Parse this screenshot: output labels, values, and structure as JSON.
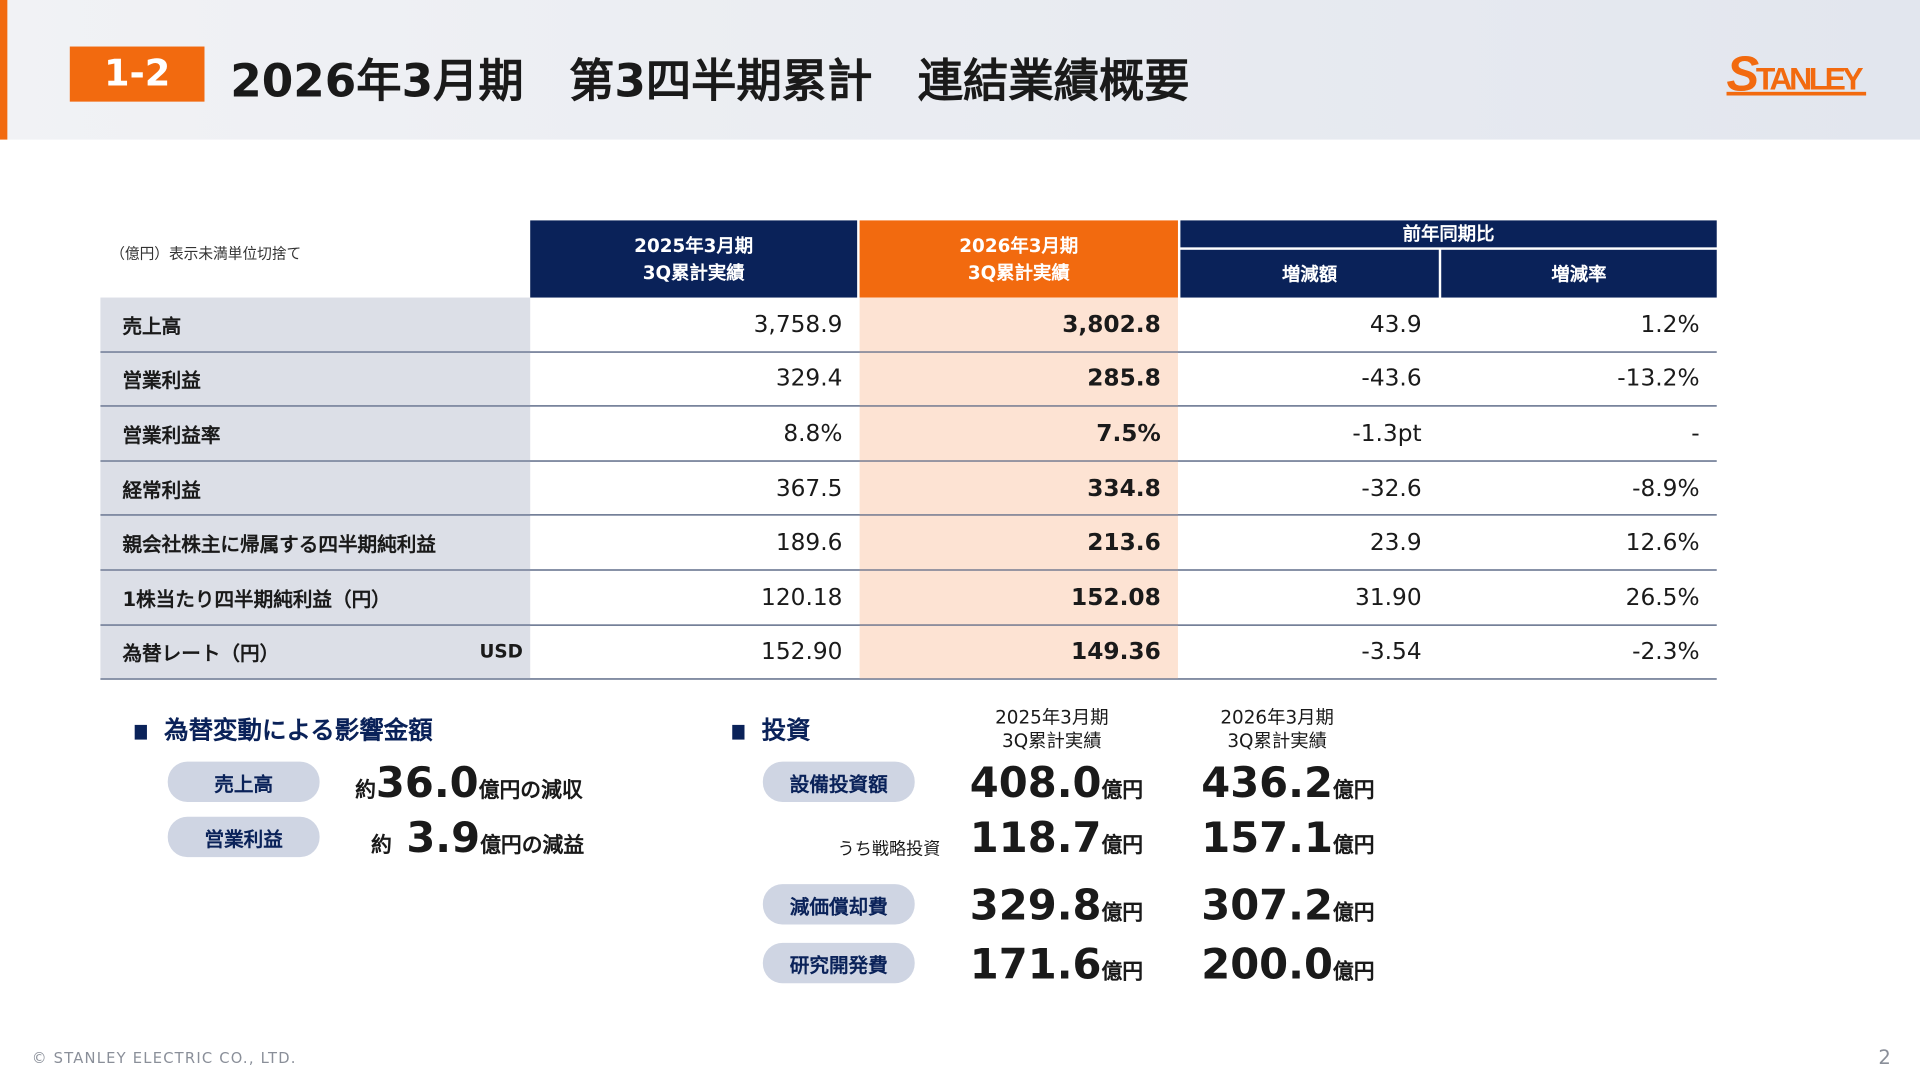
{
  "header": {
    "badge": "1-2",
    "title": "2026年3月期　第3四半期累計　連結業績概要",
    "logo_text": "STANLEY",
    "accent": "#f26a0f",
    "navy": "#0a2259"
  },
  "table": {
    "note": "（億円）表示未満単位切捨て",
    "col_prev": [
      "2025年3月期",
      "3Q累計実績"
    ],
    "col_curr": [
      "2026年3月期",
      "3Q累計実績"
    ],
    "col_yoy": "前年同期比",
    "col_diff": "増減額",
    "col_rate": "増減率",
    "rows": [
      {
        "label": "売上高",
        "prev": "3,758.9",
        "curr": "3,802.8",
        "diff": "43.9",
        "rate": "1.2%"
      },
      {
        "label": "営業利益",
        "prev": "329.4",
        "curr": "285.8",
        "diff": "-43.6",
        "rate": "-13.2%"
      },
      {
        "label": "営業利益率",
        "prev": "8.8%",
        "curr": "7.5%",
        "diff": "-1.3pt",
        "rate": "-"
      },
      {
        "label": "経常利益",
        "prev": "367.5",
        "curr": "334.8",
        "diff": "-32.6",
        "rate": "-8.9%"
      },
      {
        "label": "親会社株主に帰属する四半期純利益",
        "prev": "189.6",
        "curr": "213.6",
        "diff": "23.9",
        "rate": "12.6%"
      },
      {
        "label": "1株当たり四半期純利益（円）",
        "prev": "120.18",
        "curr": "152.08",
        "diff": "31.90",
        "rate": "26.5%"
      },
      {
        "label": "為替レート（円）",
        "sub": "USD",
        "prev": "152.90",
        "curr": "149.36",
        "diff": "-3.54",
        "rate": "-2.3%"
      }
    ]
  },
  "fx": {
    "title": "為替変動による影響金額",
    "items": [
      {
        "label": "売上高",
        "prefix": "約",
        "value": "36.0",
        "unit": "億円の減収"
      },
      {
        "label": "営業利益",
        "prefix": "約",
        "value": "3.9",
        "unit": "億円の減益"
      }
    ]
  },
  "invest": {
    "title": "投資",
    "col_prev": [
      "2025年3月期",
      "3Q累計実績"
    ],
    "col_curr": [
      "2026年3月期",
      "3Q累計実績"
    ],
    "unit": "億円",
    "items": [
      {
        "label": "設備投資額",
        "prev": "408.0",
        "curr": "436.2"
      },
      {
        "label": "うち戦略投資",
        "prev": "118.7",
        "curr": "157.1"
      },
      {
        "label": "減価償却費",
        "prev": "329.8",
        "curr": "307.2"
      },
      {
        "label": "研究開発費",
        "prev": "171.6",
        "curr": "200.0"
      }
    ]
  },
  "footer": {
    "copyright": "© STANLEY ELECTRIC CO., LTD.",
    "page": "2"
  }
}
